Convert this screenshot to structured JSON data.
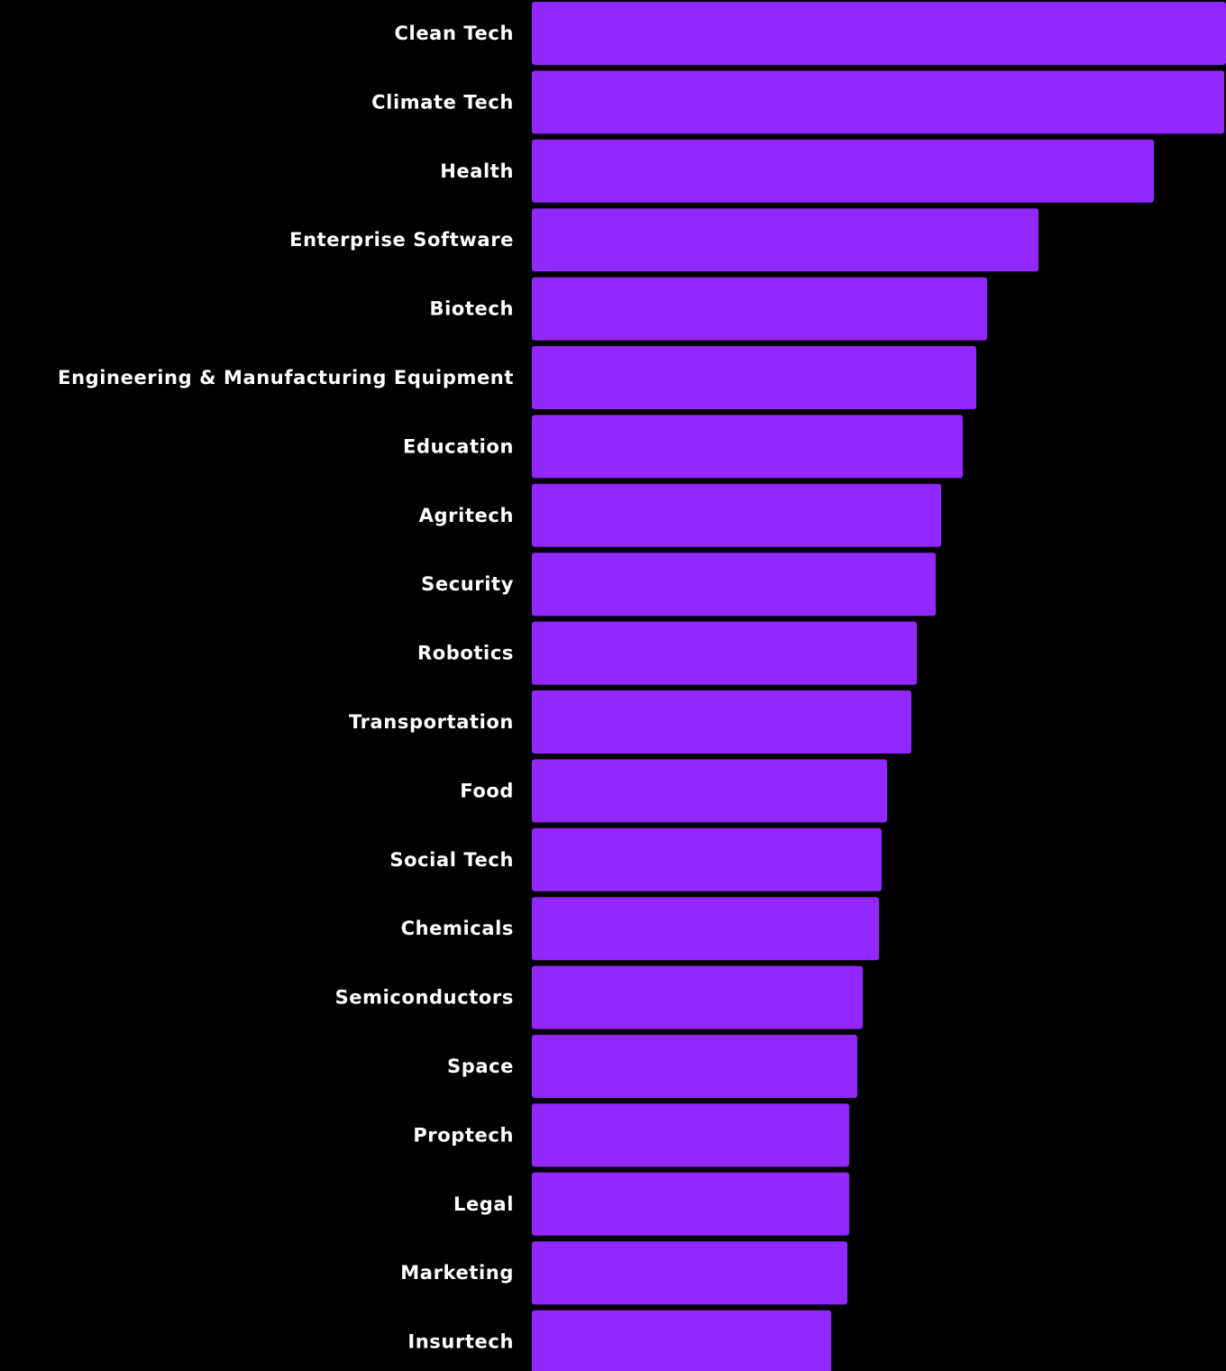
{
  "chart_data": {
    "type": "bar",
    "orientation": "horizontal",
    "categories": [
      "Clean Tech",
      "Climate Tech",
      "Health",
      "Enterprise Software",
      "Biotech",
      "Engineering & Manufacturing Equipment",
      "Education",
      "Agritech",
      "Security",
      "Robotics",
      "Transportation",
      "Food",
      "Social Tech",
      "Chemicals",
      "Semiconductors",
      "Space",
      "Proptech",
      "Legal",
      "Marketing",
      "Insurtech"
    ],
    "values": [
      770,
      768,
      690,
      562,
      505,
      493,
      478,
      454,
      448,
      427,
      421,
      394,
      388,
      385,
      367,
      361,
      352,
      352,
      350,
      332
    ],
    "title": "",
    "xlabel": "",
    "ylabel": "",
    "grid": false,
    "legend": "none"
  },
  "colors": {
    "background": "#000000",
    "bar": "#9327FF",
    "label": "#FFFFFF"
  }
}
